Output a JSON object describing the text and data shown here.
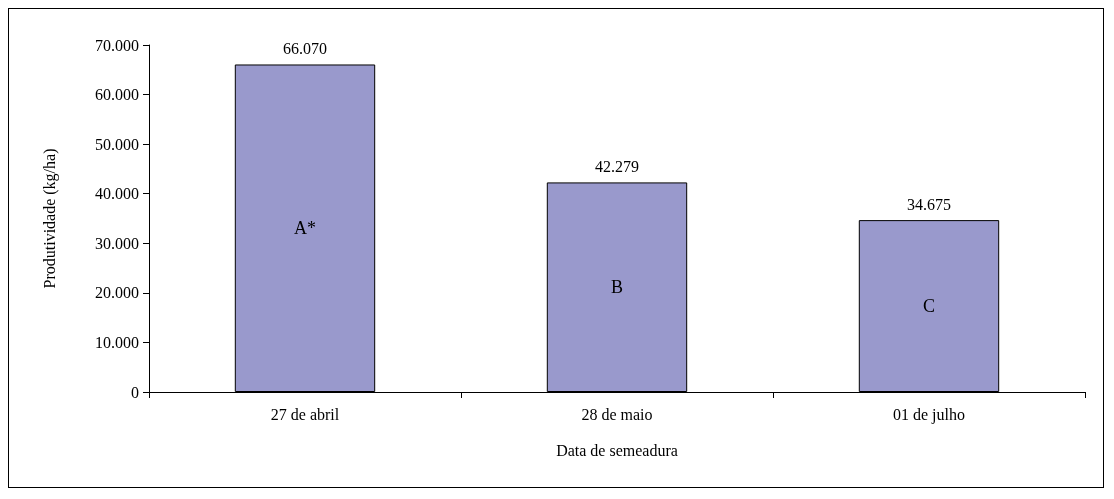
{
  "chart_data": {
    "type": "bar",
    "xlabel": "Data de semeadura",
    "ylabel": "Produtividade (kg/ha)",
    "categories": [
      "27 de abril",
      "28 de maio",
      "01 de julho"
    ],
    "values": [
      66070,
      42279,
      34675
    ],
    "value_labels": [
      "66.070",
      "42.279",
      "34.675"
    ],
    "color": "#9999cc",
    "ylim": [
      0,
      70000
    ],
    "yticks": [
      0,
      {
        "value": 10000,
        "label": "10.000"
      },
      {
        "value": 20000,
        "label": "20.000"
      },
      {
        "value": 30000,
        "label": "30.000"
      },
      {
        "value": 40000,
        "label": "40.000"
      },
      {
        "value": 50000,
        "label": "50.000"
      },
      {
        "value": 60000,
        "label": "60.000"
      },
      {
        "value": 70000,
        "label": "70.000"
      }
    ],
    "annotations": [
      "A*",
      "B",
      "C"
    ],
    "grid": false
  }
}
